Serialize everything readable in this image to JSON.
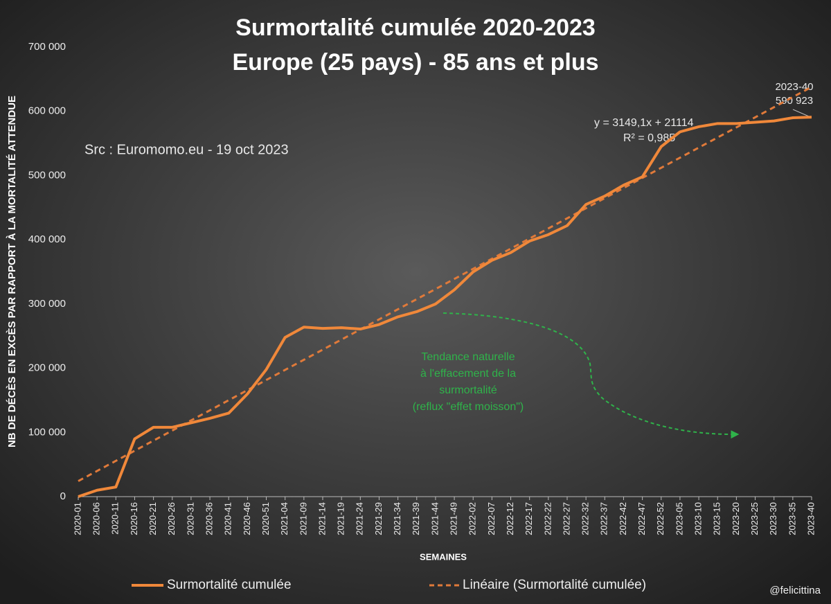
{
  "chart_data": {
    "type": "line",
    "title": "Surmortalité cumulée 2020-2023",
    "subtitle": "Europe (25 pays) - 85 ans et plus",
    "source": "Src : Euromomo.eu  - 19 oct 2023",
    "x_label": "SEMAINES",
    "y_label": "NB DE DÉCÈS EN EXCÈS PAR RAPPORT À LA MORTALITÉ ATTENDUE",
    "categories": [
      "2020-01",
      "2020-06",
      "2020-11",
      "2020-16",
      "2020-21",
      "2020-26",
      "2020-31",
      "2020-36",
      "2020-41",
      "2020-46",
      "2020-51",
      "2021-04",
      "2021-09",
      "2021-14",
      "2021-19",
      "2021-24",
      "2021-29",
      "2021-34",
      "2021-39",
      "2021-44",
      "2021-49",
      "2022-02",
      "2022-07",
      "2022-12",
      "2022-17",
      "2022-22",
      "2022-27",
      "2022-32",
      "2022-37",
      "2022-42",
      "2022-47",
      "2022-52",
      "2023-05",
      "2023-10",
      "2023-15",
      "2023-20",
      "2023-25",
      "2023-30",
      "2023-35",
      "2023-40"
    ],
    "series": [
      {
        "name": "Surmortalité cumulée",
        "color": "#f0883a",
        "values": [
          0,
          10000,
          15000,
          90000,
          108000,
          108000,
          115000,
          122000,
          130000,
          160000,
          198000,
          248000,
          264000,
          262000,
          263000,
          261000,
          268000,
          280000,
          288000,
          300000,
          322000,
          350000,
          368000,
          380000,
          398000,
          408000,
          422000,
          455000,
          468000,
          485000,
          498000,
          545000,
          568000,
          576000,
          581000,
          581000,
          583000,
          585000,
          590000,
          590923
        ]
      }
    ],
    "trendline": {
      "name": "Linéaire (Surmortalité cumulée)",
      "color": "#e07a3a",
      "equation": "y = 3149,1x + 21114",
      "r2": "R² = 0,985"
    },
    "last_point_label": [
      "2023-40",
      "590 923"
    ],
    "annotation": {
      "color": "#2fb34a",
      "lines": [
        "Tendance naturelle",
        "à l'effacement de la",
        "surmortalité",
        "(reflux \"effet moisson\")"
      ]
    },
    "ylim": [
      0,
      700000
    ],
    "yticks": [
      {
        "value": 0,
        "label": "0"
      },
      {
        "value": 100000,
        "label": "100 000"
      },
      {
        "value": 200000,
        "label": "200 000"
      },
      {
        "value": 300000,
        "label": "300 000"
      },
      {
        "value": 400000,
        "label": "400 000"
      },
      {
        "value": 500000,
        "label": "500 000"
      },
      {
        "value": 600000,
        "label": "600 000"
      },
      {
        "value": 700000,
        "label": "700 000"
      }
    ],
    "watermark": "@felicittina"
  }
}
